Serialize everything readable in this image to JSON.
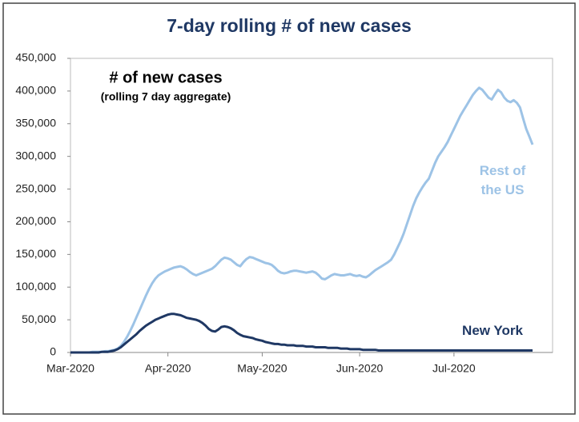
{
  "chart_data": {
    "type": "line",
    "title": "7-day rolling # of new cases",
    "annotations": [
      "# of new cases",
      "(rolling 7 day aggregate)"
    ],
    "categories": [
      "Mar-2020",
      null,
      null,
      null,
      null,
      null,
      null,
      null,
      null,
      null,
      null,
      null,
      null,
      null,
      null,
      null,
      null,
      null,
      null,
      null,
      null,
      null,
      null,
      null,
      null,
      null,
      null,
      null,
      null,
      null,
      null,
      "Apr-2020",
      null,
      null,
      null,
      null,
      null,
      null,
      null,
      null,
      null,
      null,
      null,
      null,
      null,
      null,
      null,
      null,
      null,
      null,
      null,
      null,
      null,
      null,
      null,
      null,
      null,
      null,
      null,
      null,
      null,
      "May-2020",
      null,
      null,
      null,
      null,
      null,
      null,
      null,
      null,
      null,
      null,
      null,
      null,
      null,
      null,
      null,
      null,
      null,
      null,
      null,
      null,
      null,
      null,
      null,
      null,
      null,
      null,
      null,
      null,
      null,
      null,
      "Jun-2020",
      null,
      null,
      null,
      null,
      null,
      null,
      null,
      null,
      null,
      null,
      null,
      null,
      null,
      null,
      null,
      null,
      null,
      null,
      null,
      null,
      null,
      null,
      null,
      null,
      null,
      null,
      null,
      null,
      null,
      "Jul-2020",
      null,
      null,
      null,
      null,
      null,
      null,
      null,
      null,
      null,
      null,
      null,
      null,
      null,
      null,
      null,
      null,
      null,
      null,
      null,
      null,
      null,
      null,
      null,
      null,
      null
    ],
    "series": [
      {
        "name": "Rest of the US",
        "color": "#9dc3e6",
        "values": [
          0,
          0,
          0,
          0,
          0,
          0,
          0,
          1000,
          1000,
          1000,
          1000,
          2000,
          2000,
          3000,
          4000,
          6000,
          10000,
          16000,
          24000,
          33000,
          43000,
          54000,
          65000,
          76000,
          87000,
          97000,
          106000,
          113000,
          118000,
          121000,
          124000,
          126000,
          128000,
          130000,
          131000,
          132000,
          130000,
          127000,
          123000,
          120000,
          118000,
          120000,
          122000,
          124000,
          126000,
          128000,
          132000,
          137000,
          142000,
          145000,
          144000,
          142000,
          138000,
          134000,
          132000,
          138000,
          143000,
          146000,
          145000,
          143000,
          141000,
          139000,
          137000,
          136000,
          134000,
          130000,
          125000,
          122000,
          121000,
          122000,
          124000,
          125000,
          125000,
          124000,
          123000,
          122000,
          123000,
          124000,
          122000,
          118000,
          113000,
          112000,
          115000,
          118000,
          120000,
          119000,
          118000,
          118000,
          119000,
          120000,
          118000,
          117000,
          118000,
          116000,
          115000,
          118000,
          122000,
          126000,
          129000,
          132000,
          135000,
          138000,
          142000,
          150000,
          160000,
          170000,
          182000,
          196000,
          210000,
          224000,
          236000,
          245000,
          253000,
          260000,
          266000,
          278000,
          290000,
          300000,
          307000,
          314000,
          322000,
          332000,
          342000,
          352000,
          362000,
          370000,
          378000,
          386000,
          394000,
          400000,
          405000,
          402000,
          396000,
          390000,
          387000,
          395000,
          402000,
          398000,
          390000,
          385000,
          383000,
          386000,
          382000,
          375000,
          358000,
          342000,
          330000,
          318000
        ]
      },
      {
        "name": "New York",
        "color": "#1f3864",
        "values": [
          0,
          0,
          0,
          0,
          0,
          0,
          0,
          0,
          0,
          0,
          1000,
          1000,
          1000,
          2000,
          3000,
          5000,
          8000,
          12000,
          16000,
          20000,
          24000,
          28000,
          33000,
          37000,
          41000,
          44000,
          47000,
          50000,
          52000,
          54000,
          56000,
          58000,
          59000,
          59000,
          58000,
          57000,
          55000,
          53000,
          52000,
          51000,
          50000,
          48000,
          45000,
          41000,
          36000,
          33000,
          32000,
          35000,
          39000,
          40000,
          39000,
          37000,
          34000,
          30000,
          27000,
          25000,
          24000,
          23000,
          22000,
          20000,
          19000,
          18000,
          16000,
          15000,
          14000,
          13000,
          13000,
          12000,
          12000,
          11000,
          11000,
          11000,
          10000,
          10000,
          10000,
          9000,
          9000,
          9000,
          8000,
          8000,
          8000,
          8000,
          7000,
          7000,
          7000,
          7000,
          6000,
          6000,
          6000,
          5000,
          5000,
          5000,
          5000,
          4000,
          4000,
          4000,
          4000,
          4000,
          3000,
          3000,
          3000,
          3000,
          3000,
          3000,
          3000,
          3000,
          3000,
          3000,
          3000,
          3000,
          3000,
          3000,
          3000,
          3000,
          3000,
          3000,
          3000,
          3000,
          3000,
          3000,
          3000,
          3000,
          3000,
          3000,
          3000,
          3000,
          3000,
          3000,
          3000,
          3000,
          3000,
          3000,
          3000,
          3000,
          3000,
          3000,
          3000,
          3000,
          3000,
          3000,
          3000,
          3000,
          3000,
          3000,
          3000,
          3000,
          3000,
          3000
        ]
      }
    ],
    "ylim": [
      0,
      450000
    ],
    "yticks": [
      0,
      {
        "value": 50000,
        "label": "50,000"
      },
      {
        "value": 100000,
        "label": "100,000"
      },
      {
        "value": 150000,
        "label": "150,000"
      },
      {
        "value": 200000,
        "label": "200,000"
      },
      {
        "value": 250000,
        "label": "250,000"
      },
      {
        "value": 300000,
        "label": "300,000"
      },
      {
        "value": 350000,
        "label": "350,000"
      },
      {
        "value": 400000,
        "label": "400,000"
      },
      {
        "value": 450000,
        "label": "450,000"
      }
    ],
    "grid": false
  }
}
